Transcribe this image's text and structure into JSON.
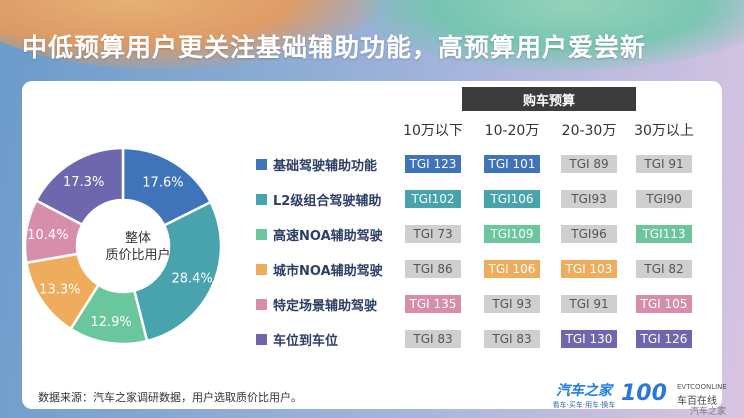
{
  "title": "中低预算用户更关注基础辅助功能，高预算用户爱尝新",
  "chart_data": [
    {
      "type": "pie",
      "center_label_line1": "整体",
      "center_label_line2": "质价比用户",
      "categories": [
        "基础驾驶辅助功能",
        "L2级组合驾驶辅助",
        "高速NOA辅助驾驶",
        "城市NOA辅助驾驶",
        "特定场景辅助驾驶",
        "车位到车位"
      ],
      "values": [
        17.6,
        28.4,
        12.9,
        13.3,
        10.4,
        17.3
      ],
      "value_labels": [
        "17.6%",
        "28.4%",
        "12.9%",
        "13.3%",
        "10.4%",
        "17.3%"
      ],
      "colors": [
        "#3f74bb",
        "#49a3ad",
        "#69c69d",
        "#eeac5c",
        "#d68eab",
        "#6e67ad"
      ]
    },
    {
      "type": "table",
      "header": "购车预算",
      "columns": [
        "10万以下",
        "10-20万",
        "20-30万",
        "30万以上"
      ],
      "rows": [
        {
          "label": "基础驾驶辅助功能",
          "values": [
            "TGI 123",
            "TGI 101",
            "TGI 89",
            "TGI 91"
          ],
          "highlight": [
            true,
            true,
            false,
            false
          ]
        },
        {
          "label": "L2级组合驾驶辅助",
          "values": [
            "TGI102",
            "TGI106",
            "TGI93",
            "TGI90"
          ],
          "highlight": [
            true,
            true,
            false,
            false
          ]
        },
        {
          "label": "高速NOA辅助驾驶",
          "values": [
            "TGI 73",
            "TGI109",
            "TGI96",
            "TGI113"
          ],
          "highlight": [
            false,
            true,
            false,
            true
          ]
        },
        {
          "label": "城市NOA辅助驾驶",
          "values": [
            "TGI 86",
            "TGI 106",
            "TGI 103",
            "TGI 82"
          ],
          "highlight": [
            false,
            true,
            true,
            false
          ]
        },
        {
          "label": "特定场景辅助驾驶",
          "values": [
            "TGI 135",
            "TGI 93",
            "TGI 91",
            "TGI 105"
          ],
          "highlight": [
            true,
            false,
            false,
            true
          ]
        },
        {
          "label": "车位到车位",
          "values": [
            "TGI 83",
            "TGI 83",
            "TGI 130",
            "TGI 126"
          ],
          "highlight": [
            false,
            false,
            true,
            true
          ]
        }
      ],
      "neutral_color": "#cfcfcf"
    }
  ],
  "footer": {
    "source_note": "数据来源：汽车之家调研数据，用户选取质价比用户。",
    "brand_name": "汽车之家",
    "brand_tagline": "看车·买车·用车·换车",
    "hundred_logo": "100",
    "brand2_en": "EVTCOONLINE",
    "brand2_cn": "车百在线",
    "watermark": "汽车之家"
  }
}
